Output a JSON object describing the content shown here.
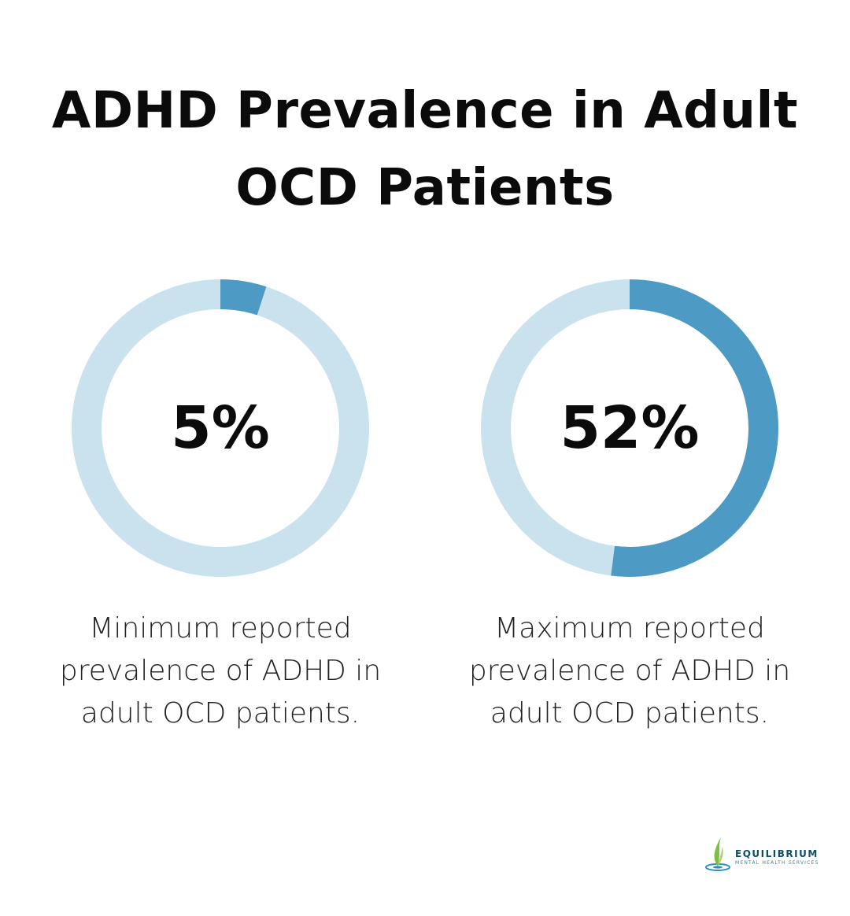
{
  "title": "ADHD Prevalence in Adult OCD Patients",
  "colors": {
    "track": "#cae2ee",
    "fill": "#4d9ac4"
  },
  "chart_data": [
    {
      "type": "pie",
      "variant": "donut",
      "value": 5,
      "max": 100,
      "label": "5%",
      "caption": "Minimum reported prevalence of ADHD in adult OCD patients."
    },
    {
      "type": "pie",
      "variant": "donut",
      "value": 52,
      "max": 100,
      "label": "52%",
      "caption": "Maximum reported prevalence of ADHD in adult OCD patients."
    }
  ],
  "logo": {
    "name": "EQUILIBRIUM",
    "tagline": "MENTAL HEALTH SERVICES"
  }
}
